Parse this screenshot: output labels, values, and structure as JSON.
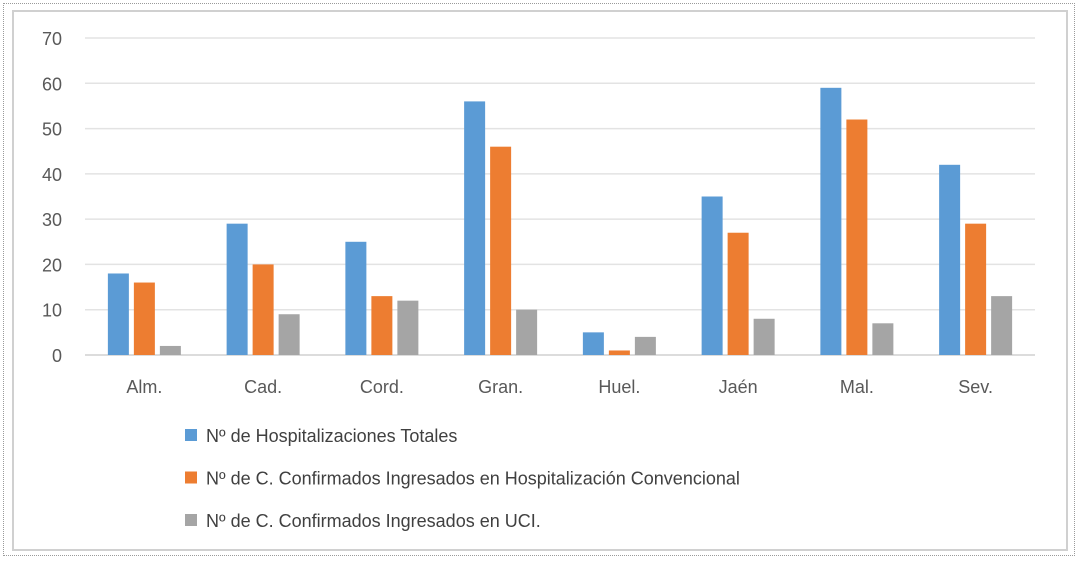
{
  "chart_data": {
    "type": "bar",
    "categories": [
      "Alm.",
      "Cad.",
      "Cord.",
      "Gran.",
      "Huel.",
      "Jaén",
      "Mal.",
      "Sev."
    ],
    "series": [
      {
        "name": "Nº de Hospitalizaciones Totales",
        "color": "#5b9bd5",
        "values": [
          18,
          29,
          25,
          56,
          5,
          35,
          59,
          42
        ]
      },
      {
        "name": "Nº de C. Confirmados Ingresados en Hospitalización Convencional",
        "color": "#ed7d31",
        "values": [
          16,
          20,
          13,
          46,
          1,
          27,
          52,
          29
        ]
      },
      {
        "name": "Nº de C. Confirmados Ingresados en UCI.",
        "color": "#a5a5a5",
        "values": [
          2,
          9,
          12,
          10,
          4,
          8,
          7,
          13
        ]
      }
    ],
    "yticks": [
      "0",
      "10",
      "20",
      "30",
      "40",
      "50",
      "60",
      "70"
    ],
    "ylim": [
      0,
      70
    ],
    "grid": true,
    "legend": "bottom",
    "title": "",
    "xlabel": "",
    "ylabel": ""
  }
}
